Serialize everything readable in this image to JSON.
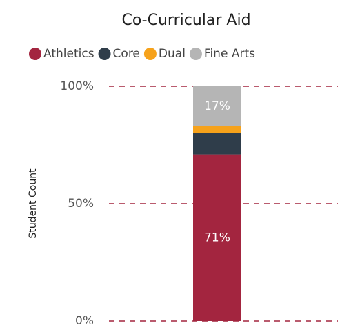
{
  "chart_data": {
    "type": "stacked_bar",
    "title": "Co-Curricular Aid",
    "y_label": "Student Count",
    "categories": [
      null
    ],
    "series": [
      {
        "name": "Athletics",
        "color": "#a3253f",
        "values": [
          71
        ],
        "value_labels": [
          "71%"
        ]
      },
      {
        "name": "Core",
        "color": "#2f3d4a",
        "values": [
          9
        ]
      },
      {
        "name": "Dual",
        "color": "#f6a21b",
        "values": [
          3
        ]
      },
      {
        "name": "Fine Arts",
        "color": "#b5b5b5",
        "values": [
          17
        ],
        "value_labels": [
          "17%"
        ]
      }
    ],
    "ylim": [
      0,
      100
    ],
    "yticks": [
      {
        "value": 0,
        "label": "0%"
      },
      {
        "value": 50,
        "label": "50%"
      },
      {
        "value": 100,
        "label": "100%"
      }
    ],
    "grid": true,
    "grid_color": "#a3253f",
    "legend": "top"
  }
}
